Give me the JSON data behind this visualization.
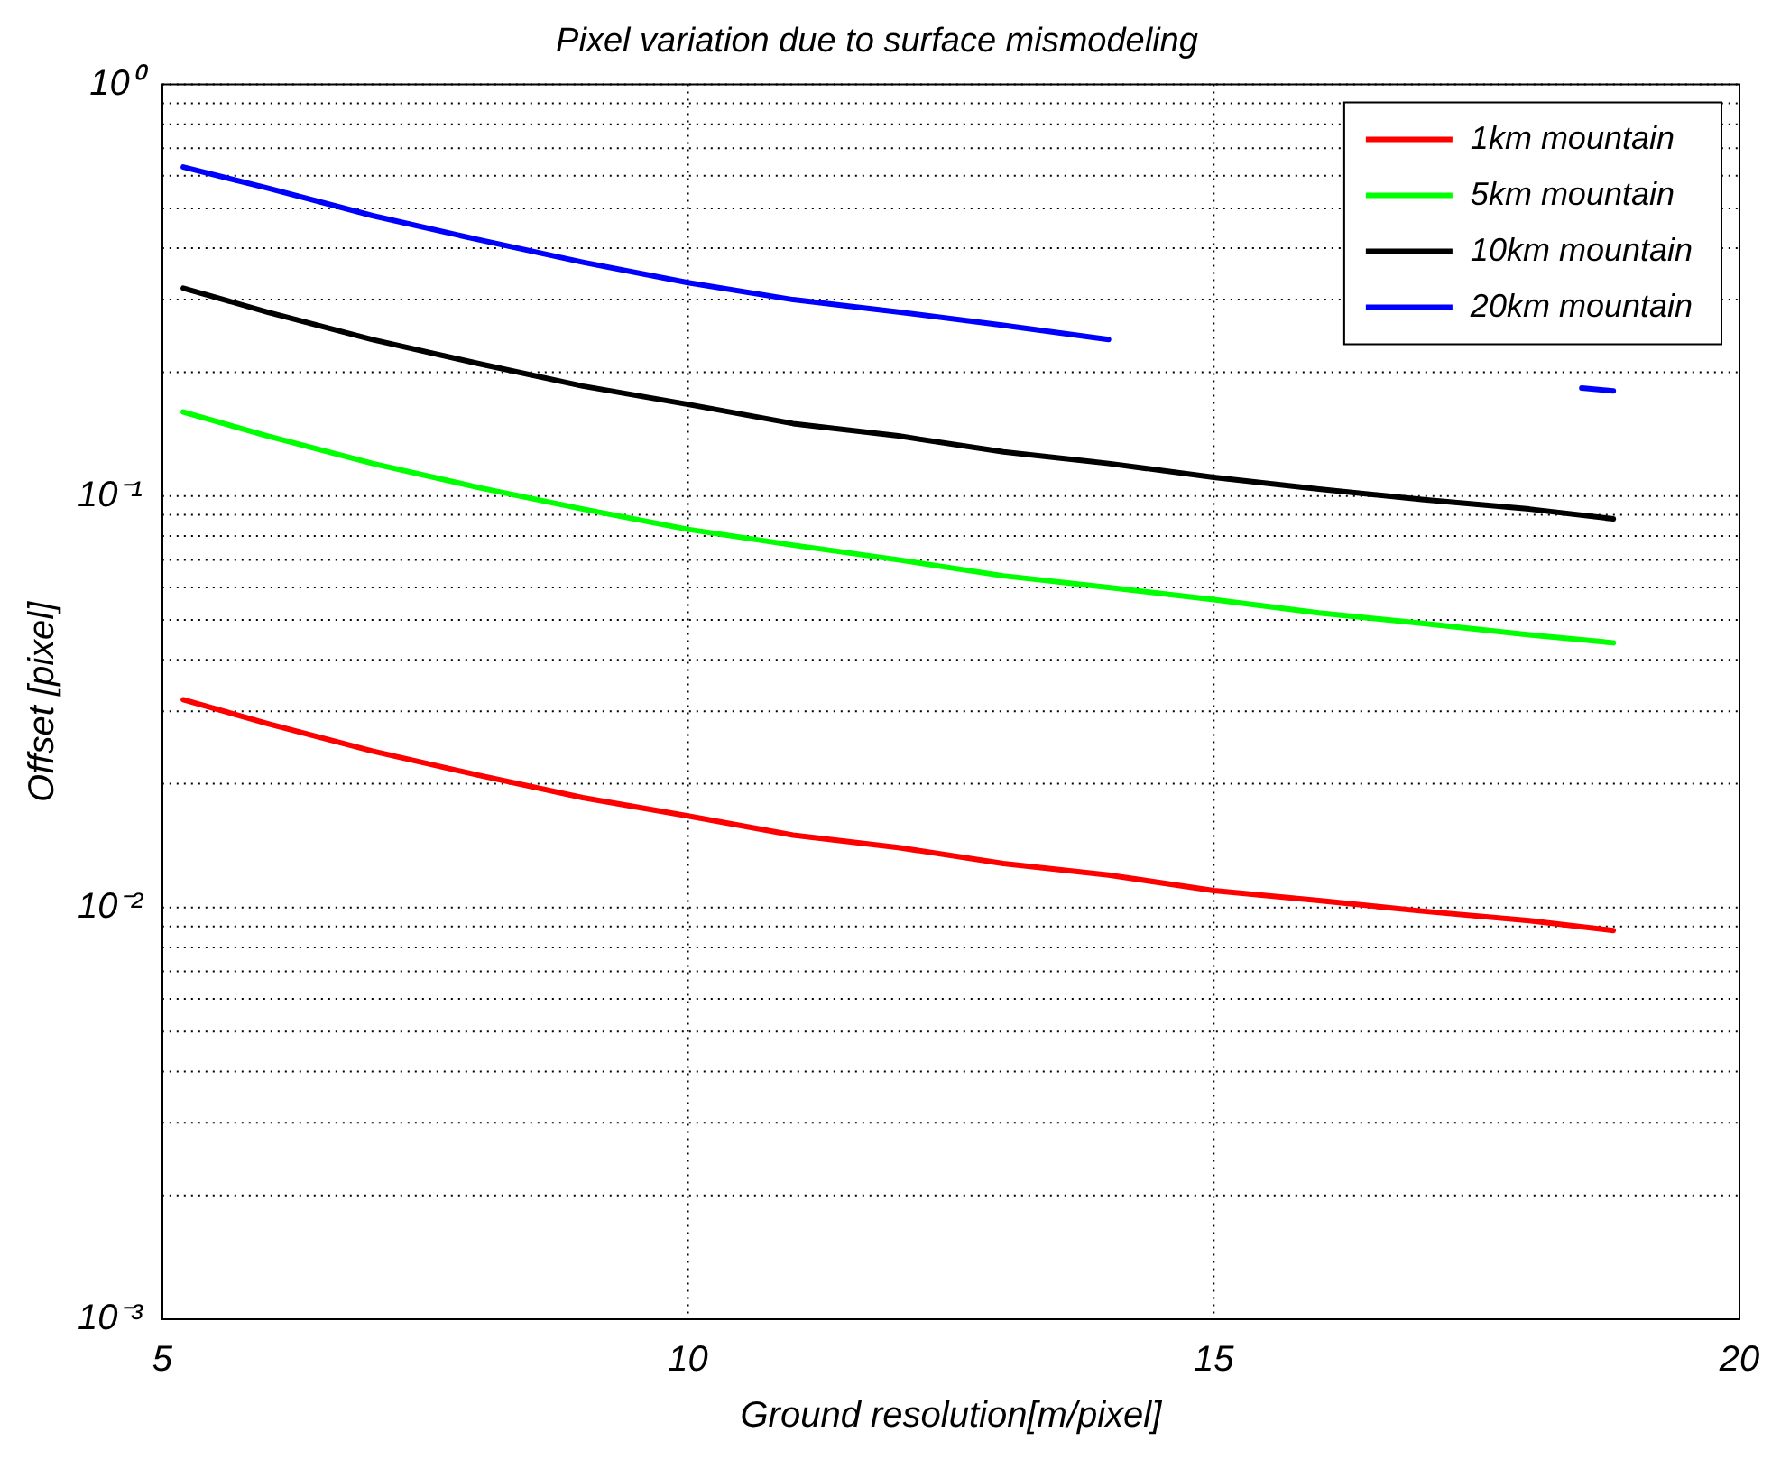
{
  "chart_data": {
    "type": "line",
    "title": "Pixel variation due to surface mismodeling",
    "xlabel": "Ground resolution[m/pixel]",
    "ylabel": "Offset [pixel]",
    "x": [
      5.2,
      6,
      7,
      8,
      9,
      10,
      11,
      12,
      13,
      14,
      15,
      16,
      17,
      18,
      18.8
    ],
    "series": [
      {
        "name": "1km mountain",
        "color": "#ff0000",
        "values": [
          0.032,
          0.028,
          0.024,
          0.021,
          0.0185,
          0.0167,
          0.015,
          0.014,
          0.0128,
          0.012,
          0.011,
          0.0104,
          0.0098,
          0.0093,
          0.0088
        ]
      },
      {
        "name": "5km mountain",
        "color": "#00ff00",
        "values": [
          0.16,
          0.14,
          0.12,
          0.105,
          0.093,
          0.083,
          0.076,
          0.07,
          0.064,
          0.06,
          0.056,
          0.052,
          0.049,
          0.046,
          0.044
        ]
      },
      {
        "name": "10km mountain",
        "color": "#000000",
        "values": [
          0.32,
          0.28,
          0.24,
          0.21,
          0.185,
          0.167,
          0.15,
          0.14,
          0.128,
          0.12,
          0.111,
          0.104,
          0.098,
          0.093,
          0.088
        ]
      },
      {
        "name": "20km mountain",
        "color": "#0000ff",
        "x": [
          5.2,
          6,
          7,
          8,
          9,
          10,
          11,
          12,
          13,
          14,
          15,
          18.5,
          18.8
        ],
        "values": [
          0.63,
          0.56,
          0.48,
          0.42,
          0.37,
          0.33,
          0.3,
          0.28,
          0.26,
          0.24,
          null,
          0.183,
          0.18
        ]
      }
    ],
    "xlim": [
      5,
      20
    ],
    "xticks": [
      5,
      10,
      15,
      20
    ],
    "ylim": [
      0.001,
      1
    ],
    "yticks": [
      {
        "value": 0.001,
        "label": "10⁻³"
      },
      {
        "value": 0.01,
        "label": "10⁻²"
      },
      {
        "value": 0.1,
        "label": "10⁻¹"
      },
      {
        "value": 1,
        "label": "10⁰"
      }
    ],
    "log": "y",
    "grid": true,
    "legend": "top right",
    "line_style": "solid",
    "marker": "none"
  }
}
